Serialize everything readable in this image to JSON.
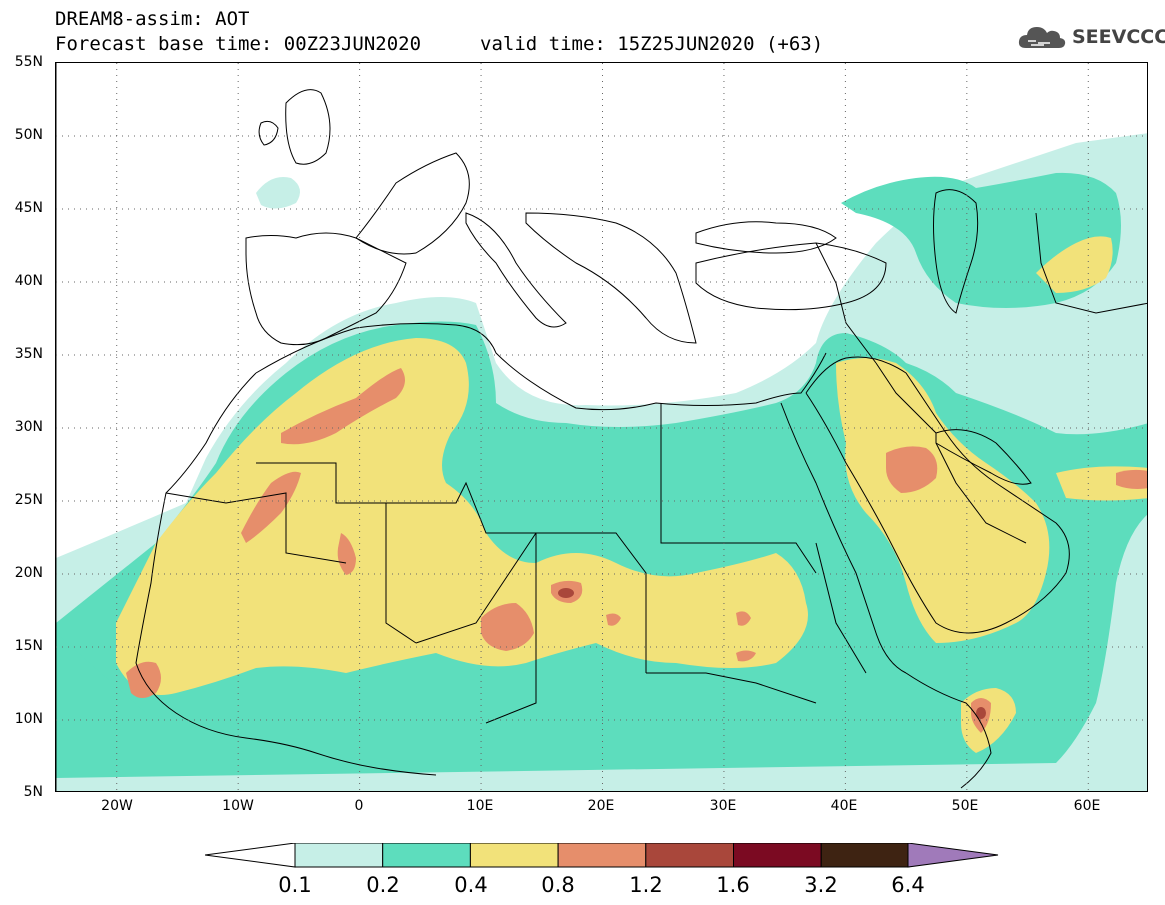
{
  "header": {
    "title": "DREAM8-assim: AOT",
    "base_time": "Forecast base time: 00Z23JUN2020",
    "valid_time": "valid time: 15Z25JUN2020 (+63)"
  },
  "logo": {
    "text": "SEEVCCC",
    "icon": "cloud-icon"
  },
  "axes": {
    "lat_labels": [
      "55N",
      "50N",
      "45N",
      "40N",
      "35N",
      "30N",
      "25N",
      "20N",
      "15N",
      "10N",
      "5N"
    ],
    "lon_labels": [
      "20W",
      "10W",
      "0",
      "10E",
      "20E",
      "30E",
      "40E",
      "50E",
      "60E"
    ],
    "lon_range": [
      -25,
      65
    ],
    "lat_range": [
      5,
      55
    ],
    "grid": "dotted"
  },
  "legend": {
    "thresholds": [
      "0.1",
      "0.2",
      "0.4",
      "0.8",
      "1.2",
      "1.6",
      "3.2",
      "6.4"
    ],
    "colors": [
      "#c6efe7",
      "#5dddbd",
      "#f2e27a",
      "#e68e6b",
      "#a9473b",
      "#7b0a22",
      "#3e2312",
      "#a07aba"
    ],
    "low_arrow_color": "#ffffff"
  },
  "field_colors": {
    "c1": "#c6efe7",
    "c2": "#5dddbd",
    "c3": "#f2e27a",
    "c4": "#e68e6b",
    "c5": "#a9473b"
  }
}
